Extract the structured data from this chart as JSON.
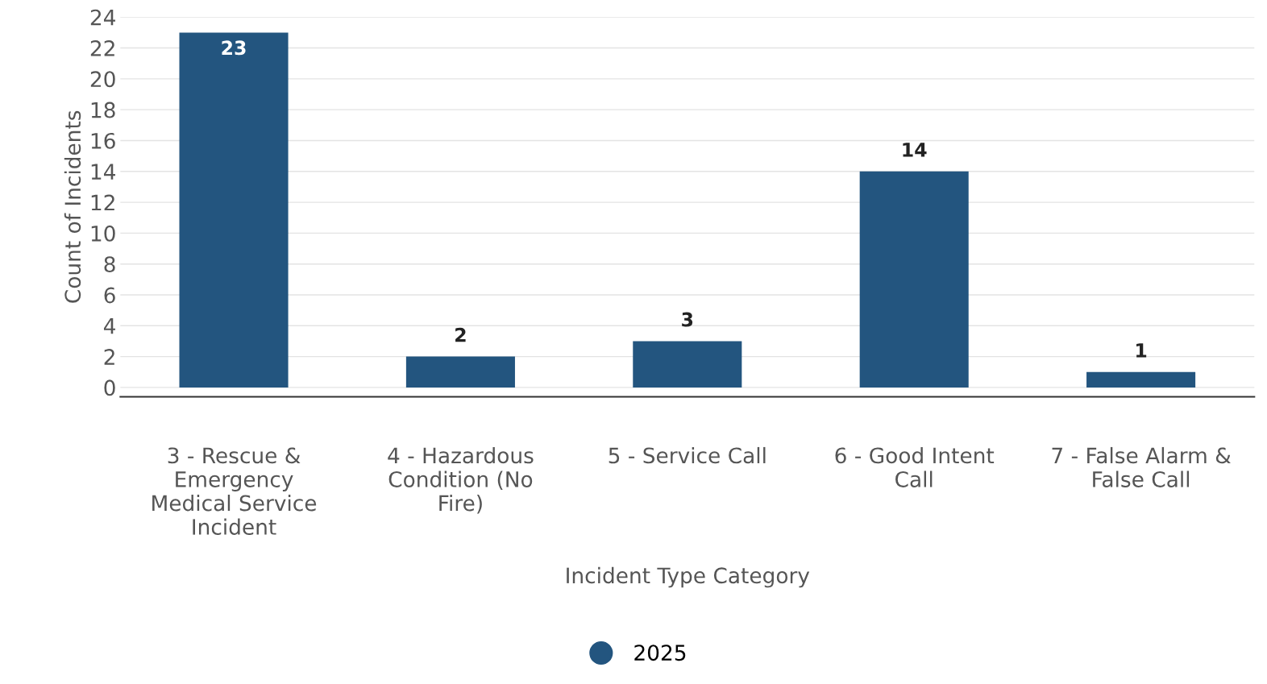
{
  "chart_data": {
    "type": "bar",
    "xlabel": "Incident Type Category",
    "ylabel": "Count of Incidents",
    "categories": [
      "3 - Rescue &\nEmergency\nMedical Service\nIncident",
      "4 - Hazardous\nCondition (No\nFire)",
      "5 - Service Call",
      "6 - Good Intent\nCall",
      "7 - False Alarm &\nFalse Call"
    ],
    "series": [
      {
        "name": "2025",
        "color": "#23557f",
        "values": [
          23,
          2,
          3,
          14,
          1
        ]
      }
    ],
    "ylim": [
      -0.6,
      24
    ],
    "yticks": [
      0,
      2,
      4,
      6,
      8,
      10,
      12,
      14,
      16,
      18,
      20,
      22,
      24
    ],
    "grid": "y",
    "legend": "bottom",
    "data_labels": true
  }
}
